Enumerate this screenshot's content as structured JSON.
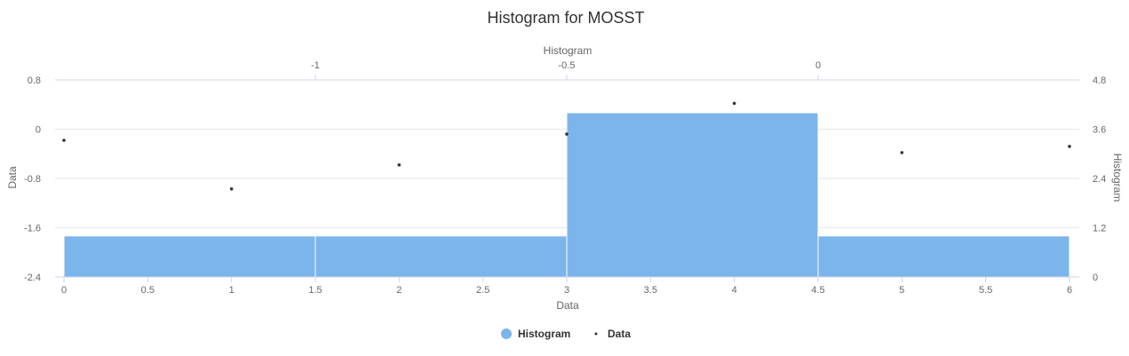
{
  "chart_data": {
    "type": "bar",
    "title": "Histogram for MOSST",
    "x_axis": {
      "label": "Data",
      "range": [
        0,
        6
      ],
      "ticks": [
        "0",
        "0.5",
        "1",
        "1.5",
        "2",
        "2.5",
        "3",
        "3.5",
        "4",
        "4.5",
        "5",
        "5.5",
        "6"
      ]
    },
    "x2_axis": {
      "label": "Histogram",
      "range": [
        -1.3,
        0
      ],
      "ticks": [
        "-1",
        "-0.5",
        "0"
      ]
    },
    "y_axis": {
      "label": "Data",
      "range": [
        -2.4,
        0.8
      ],
      "ticks": [
        "0.8",
        "0",
        "-0.8",
        "-1.6",
        "-2.4"
      ]
    },
    "y2_axis": {
      "label": "Histogram",
      "range": [
        0,
        4.8
      ],
      "ticks": [
        "4.8",
        "3.6",
        "2.4",
        "1.2",
        "0"
      ]
    },
    "series": [
      {
        "name": "Histogram",
        "type": "column",
        "axis": "secondary",
        "color": "#7cb5ec",
        "bins": [
          {
            "x0": 0,
            "x1": 1.5,
            "value": 1
          },
          {
            "x0": 1.5,
            "x1": 3,
            "value": 1
          },
          {
            "x0": 3,
            "x1": 4.5,
            "value": 4
          },
          {
            "x0": 4.5,
            "x1": 6,
            "value": 1
          }
        ]
      },
      {
        "name": "Data",
        "type": "scatter",
        "axis": "primary",
        "color": "#333333",
        "points": [
          {
            "x": 0,
            "y": -0.18
          },
          {
            "x": 1,
            "y": -0.97
          },
          {
            "x": 2,
            "y": -0.58
          },
          {
            "x": 3,
            "y": -0.08
          },
          {
            "x": 4,
            "y": 0.42
          },
          {
            "x": 5,
            "y": -0.38
          },
          {
            "x": 6,
            "y": -0.28
          }
        ]
      }
    ],
    "legend": {
      "position": "bottom-center",
      "items": [
        "Histogram",
        "Data"
      ]
    },
    "grid": true
  }
}
